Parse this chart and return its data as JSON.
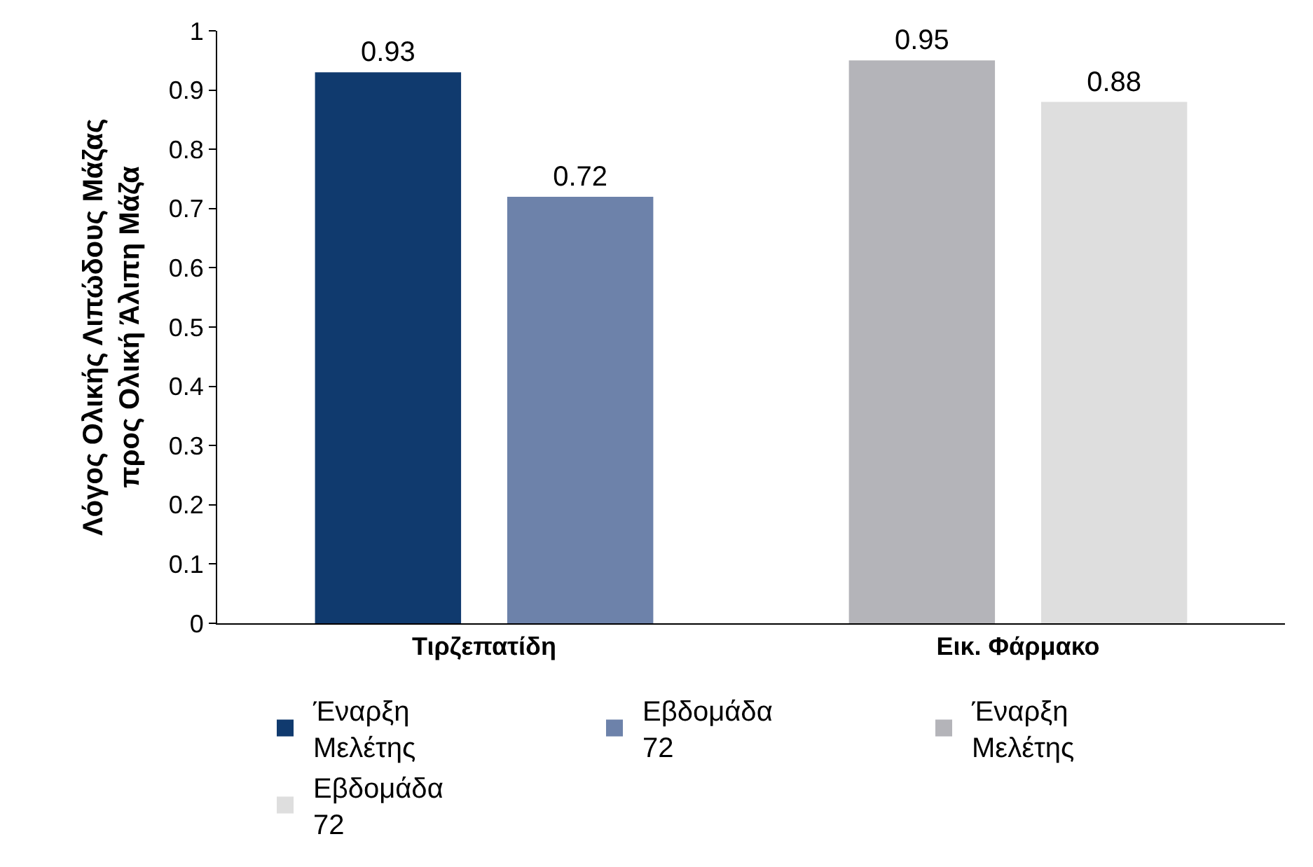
{
  "chart_data": {
    "type": "bar",
    "ylabel": "Λόγος Ολικής Λιπώδους Μάζας\nπρος Ολική Άλιπη Μάζα",
    "categories": [
      "Τιρζεπατίδη",
      "Εικ. Φάρμακο"
    ],
    "series": [
      {
        "name": "Έναρξη Μελέτης",
        "color": "#103a6e",
        "values": [
          0.93,
          null
        ]
      },
      {
        "name": "Εβδομάδα 72",
        "color": "#6d82aa",
        "values": [
          0.72,
          null
        ]
      },
      {
        "name": "Έναρξη Μελέτης",
        "color": "#b4b4b9",
        "values": [
          null,
          0.95
        ]
      },
      {
        "name": "Εβδομάδα 72",
        "color": "#dedede",
        "values": [
          null,
          0.88
        ]
      }
    ],
    "ylim": [
      0,
      1
    ],
    "yticks": [
      0,
      0.1,
      0.2,
      0.3,
      0.4,
      0.5,
      0.6,
      0.7,
      0.8,
      0.9,
      1
    ],
    "grid": false,
    "legend": "bottom",
    "data_labels": true
  }
}
